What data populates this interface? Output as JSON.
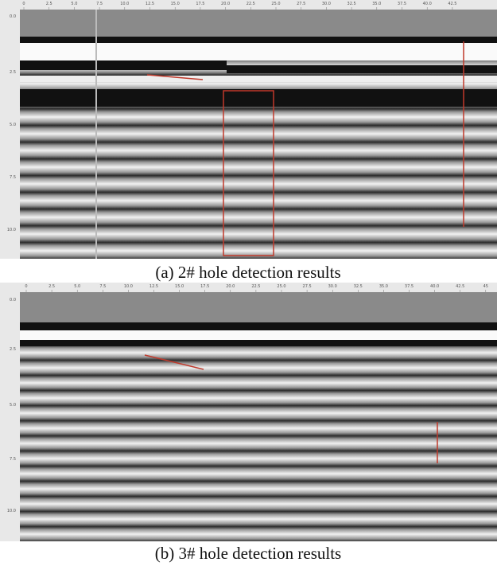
{
  "panels": [
    {
      "caption": "(a) 2# hole detection results",
      "x_ticks": [
        "0",
        "2.5",
        "5.0",
        "7.5",
        "10.0",
        "12.5",
        "15.0",
        "17.5",
        "20.0",
        "22.5",
        "25.0",
        "27.5",
        "30.0",
        "32.5",
        "35.0",
        "37.5",
        "40.0",
        "42.5"
      ],
      "y_ticks": [
        "0.0",
        "2.5",
        "5.0",
        "7.5",
        "10.0"
      ]
    },
    {
      "caption": "(b) 3# hole detection results",
      "x_ticks": [
        "0",
        "2.5",
        "5.0",
        "7.5",
        "10.0",
        "12.5",
        "15.0",
        "17.5",
        "20.0",
        "22.5",
        "25.0",
        "27.5",
        "30.0",
        "32.5",
        "35.0",
        "37.5",
        "40.0",
        "42.5",
        "45"
      ],
      "y_ticks": [
        "0.0",
        "2.5",
        "5.0",
        "7.5",
        "10.0"
      ]
    }
  ]
}
